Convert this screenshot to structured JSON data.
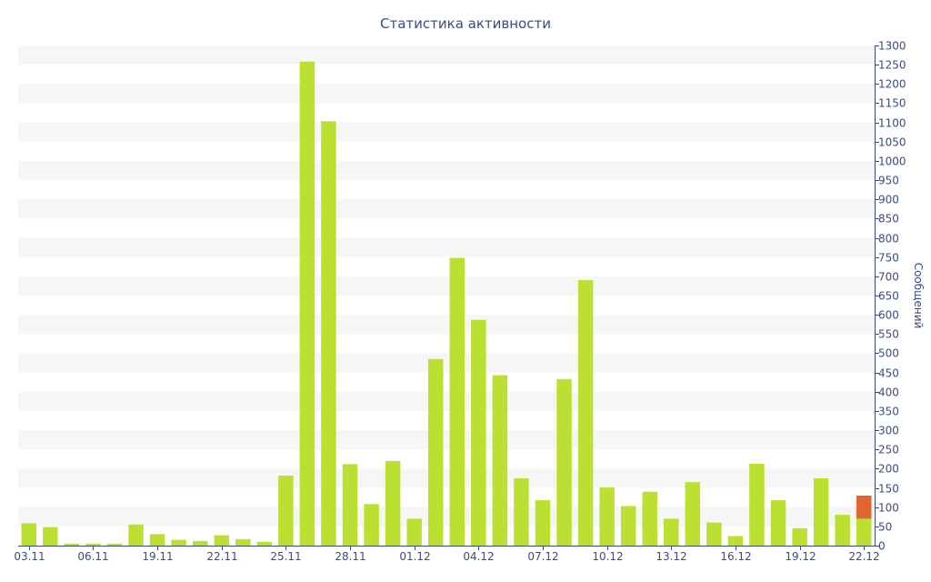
{
  "chart_data": {
    "type": "bar",
    "title": "Статистика активности",
    "xlabel": "",
    "ylabel": "Сообщений",
    "ylim": [
      0,
      1300
    ],
    "ytick_step": 50,
    "grid": "horizontal-bands",
    "stacked": true,
    "x_tick_labels": [
      "03.11",
      "06.11",
      "19.11",
      "22.11",
      "25.11",
      "28.11",
      "01.12",
      "04.12",
      "07.12",
      "10.12",
      "13.12",
      "16.12",
      "19.12",
      "22.12"
    ],
    "x_tick_positions": [
      0,
      3,
      6,
      9,
      12,
      15,
      18,
      21,
      24,
      27,
      30,
      33,
      36,
      39
    ],
    "series": [
      {
        "color": "#bbe032",
        "values": [
          58,
          48,
          5,
          5,
          5,
          55,
          30,
          15,
          12,
          27,
          17,
          10,
          182,
          1258,
          1103,
          212,
          108,
          220,
          70,
          485,
          748,
          587,
          443,
          175,
          118,
          433,
          690,
          151,
          103,
          140,
          70,
          165,
          60,
          25,
          213,
          118,
          45,
          175,
          80,
          70
        ]
      },
      {
        "color": "#e0652e",
        "values": [
          0,
          0,
          0,
          0,
          0,
          0,
          0,
          0,
          0,
          0,
          0,
          0,
          0,
          0,
          0,
          0,
          0,
          0,
          0,
          0,
          0,
          0,
          0,
          0,
          0,
          0,
          0,
          0,
          0,
          0,
          0,
          0,
          0,
          0,
          0,
          0,
          0,
          0,
          0,
          60
        ]
      }
    ]
  },
  "colors": {
    "text": "#3b4a86",
    "band": "#f6f6f6",
    "axis": "#3b4a86"
  }
}
